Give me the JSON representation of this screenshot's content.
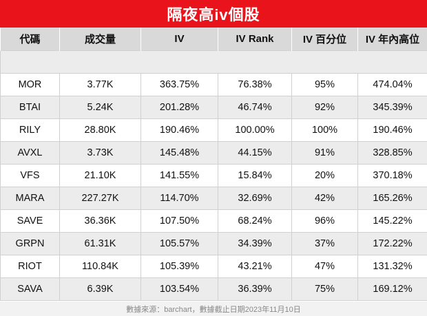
{
  "title": "隔夜高iv個股",
  "headers": [
    "代碼",
    "成交量",
    "IV",
    "IV Rank",
    "IV 百分位",
    "IV 年內高位"
  ],
  "rows": [
    [
      "MOR",
      "3.77K",
      "363.75%",
      "76.38%",
      "95%",
      "474.04%"
    ],
    [
      "BTAI",
      "5.24K",
      "201.28%",
      "46.74%",
      "92%",
      "345.39%"
    ],
    [
      "RILY",
      "28.80K",
      "190.46%",
      "100.00%",
      "100%",
      "190.46%"
    ],
    [
      "AVXL",
      "3.73K",
      "145.48%",
      "44.15%",
      "91%",
      "328.85%"
    ],
    [
      "VFS",
      "21.10K",
      "141.55%",
      "15.84%",
      "20%",
      "370.18%"
    ],
    [
      "MARA",
      "227.27K",
      "114.70%",
      "32.69%",
      "42%",
      "165.26%"
    ],
    [
      "SAVE",
      "36.36K",
      "107.50%",
      "68.24%",
      "96%",
      "145.22%"
    ],
    [
      "GRPN",
      "61.31K",
      "105.57%",
      "34.39%",
      "37%",
      "172.22%"
    ],
    [
      "RIOT",
      "110.84K",
      "105.39%",
      "43.21%",
      "47%",
      "131.32%"
    ],
    [
      "SAVA",
      "6.39K",
      "103.54%",
      "36.39%",
      "75%",
      "169.12%"
    ]
  ],
  "footer": "數據來源：barchart，數據截止日期2023年11月10日",
  "colors": {
    "title_bg": "#e8131b",
    "header_bg": "#d9d9d9",
    "alt_row_bg": "#ececec"
  }
}
